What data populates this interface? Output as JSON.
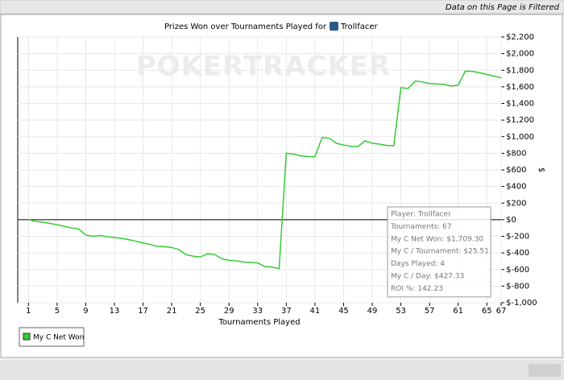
{
  "header": {
    "filter_notice": "Data on this Page is Filtered"
  },
  "chart_data": {
    "type": "line",
    "title": "Prizes Won over Tournaments Played for",
    "title_player": "Trollfacer",
    "watermark": "POKERTRACKER",
    "x_label": "Tournaments Played",
    "y_label": "$",
    "x": [
      1,
      2,
      3,
      4,
      5,
      6,
      7,
      8,
      9,
      10,
      11,
      12,
      13,
      14,
      15,
      16,
      17,
      18,
      19,
      20,
      21,
      22,
      23,
      24,
      25,
      26,
      27,
      28,
      29,
      30,
      31,
      32,
      33,
      34,
      35,
      36,
      37,
      38,
      39,
      40,
      41,
      42,
      43,
      44,
      45,
      46,
      47,
      48,
      49,
      50,
      51,
      52,
      53,
      54,
      55,
      56,
      57,
      58,
      59,
      60,
      61,
      62,
      63,
      64,
      65,
      66,
      67
    ],
    "series": [
      {
        "name": "My C Net Won",
        "color": "#33cc33",
        "values": [
          0,
          -20,
          -30,
          -45,
          -60,
          -80,
          -100,
          -110,
          -185,
          -200,
          -190,
          -205,
          -215,
          -225,
          -240,
          -260,
          -280,
          -300,
          -320,
          -325,
          -335,
          -360,
          -420,
          -440,
          -450,
          -410,
          -420,
          -470,
          -490,
          -495,
          -510,
          -515,
          -520,
          -565,
          -570,
          -590,
          800,
          790,
          770,
          760,
          760,
          990,
          980,
          920,
          900,
          885,
          880,
          950,
          920,
          910,
          895,
          890,
          1590,
          1580,
          1670,
          1660,
          1640,
          1635,
          1630,
          1610,
          1620,
          1790,
          1785,
          1770,
          1750,
          1730,
          1709.3
        ]
      }
    ],
    "xlim": [
      -0.5,
      67
    ],
    "xticks": [
      1,
      5,
      9,
      13,
      17,
      21,
      25,
      29,
      33,
      37,
      41,
      45,
      49,
      53,
      57,
      61,
      65,
      67
    ],
    "ylim": [
      -1000,
      2200
    ],
    "yticks": [
      {
        "value": -1000,
        "label": "$-1,000"
      },
      {
        "value": -800,
        "label": "$-800"
      },
      {
        "value": -600,
        "label": "$-600"
      },
      {
        "value": -400,
        "label": "$-400"
      },
      {
        "value": -200,
        "label": "$-200"
      },
      {
        "value": 0,
        "label": "$0"
      },
      {
        "value": 200,
        "label": "$200"
      },
      {
        "value": 400,
        "label": "$400"
      },
      {
        "value": 600,
        "label": "$600"
      },
      {
        "value": 800,
        "label": "$800"
      },
      {
        "value": 1000,
        "label": "$1,000"
      },
      {
        "value": 1200,
        "label": "$1,200"
      },
      {
        "value": 1400,
        "label": "$1,400"
      },
      {
        "value": 1600,
        "label": "$1,600"
      },
      {
        "value": 1800,
        "label": "$1,800"
      },
      {
        "value": 2000,
        "label": "$2,000"
      },
      {
        "value": 2200,
        "label": "$2,200"
      }
    ],
    "grid": true,
    "legend": "bottom-left",
    "tooltip": [
      "Player: Trollfacer",
      "Tournaments: 67",
      "My C Net Won: $1,709.30",
      "My C / Tournament: $25.51",
      "Days Played: 4",
      "My C / Day: $427.33",
      "ROI %: 142.23"
    ]
  }
}
